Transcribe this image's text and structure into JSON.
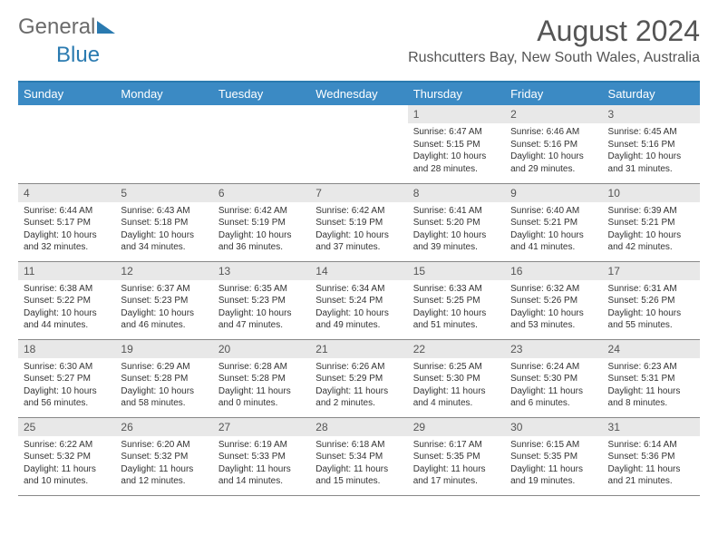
{
  "logo": {
    "text_gray": "General",
    "text_blue": "Blue"
  },
  "title": "August 2024",
  "location": "Rushcutters Bay, New South Wales, Australia",
  "colors": {
    "header_bg": "#3b8ac4",
    "header_border": "#2a7ab0",
    "daynum_bg": "#e8e8e8",
    "text_muted": "#555",
    "row_divider": "#888"
  },
  "weekdays": [
    "Sunday",
    "Monday",
    "Tuesday",
    "Wednesday",
    "Thursday",
    "Friday",
    "Saturday"
  ],
  "first_day_index": 4,
  "days": [
    {
      "n": 1,
      "sr": "6:47 AM",
      "ss": "5:15 PM",
      "dl": "10 hours and 28 minutes."
    },
    {
      "n": 2,
      "sr": "6:46 AM",
      "ss": "5:16 PM",
      "dl": "10 hours and 29 minutes."
    },
    {
      "n": 3,
      "sr": "6:45 AM",
      "ss": "5:16 PM",
      "dl": "10 hours and 31 minutes."
    },
    {
      "n": 4,
      "sr": "6:44 AM",
      "ss": "5:17 PM",
      "dl": "10 hours and 32 minutes."
    },
    {
      "n": 5,
      "sr": "6:43 AM",
      "ss": "5:18 PM",
      "dl": "10 hours and 34 minutes."
    },
    {
      "n": 6,
      "sr": "6:42 AM",
      "ss": "5:19 PM",
      "dl": "10 hours and 36 minutes."
    },
    {
      "n": 7,
      "sr": "6:42 AM",
      "ss": "5:19 PM",
      "dl": "10 hours and 37 minutes."
    },
    {
      "n": 8,
      "sr": "6:41 AM",
      "ss": "5:20 PM",
      "dl": "10 hours and 39 minutes."
    },
    {
      "n": 9,
      "sr": "6:40 AM",
      "ss": "5:21 PM",
      "dl": "10 hours and 41 minutes."
    },
    {
      "n": 10,
      "sr": "6:39 AM",
      "ss": "5:21 PM",
      "dl": "10 hours and 42 minutes."
    },
    {
      "n": 11,
      "sr": "6:38 AM",
      "ss": "5:22 PM",
      "dl": "10 hours and 44 minutes."
    },
    {
      "n": 12,
      "sr": "6:37 AM",
      "ss": "5:23 PM",
      "dl": "10 hours and 46 minutes."
    },
    {
      "n": 13,
      "sr": "6:35 AM",
      "ss": "5:23 PM",
      "dl": "10 hours and 47 minutes."
    },
    {
      "n": 14,
      "sr": "6:34 AM",
      "ss": "5:24 PM",
      "dl": "10 hours and 49 minutes."
    },
    {
      "n": 15,
      "sr": "6:33 AM",
      "ss": "5:25 PM",
      "dl": "10 hours and 51 minutes."
    },
    {
      "n": 16,
      "sr": "6:32 AM",
      "ss": "5:26 PM",
      "dl": "10 hours and 53 minutes."
    },
    {
      "n": 17,
      "sr": "6:31 AM",
      "ss": "5:26 PM",
      "dl": "10 hours and 55 minutes."
    },
    {
      "n": 18,
      "sr": "6:30 AM",
      "ss": "5:27 PM",
      "dl": "10 hours and 56 minutes."
    },
    {
      "n": 19,
      "sr": "6:29 AM",
      "ss": "5:28 PM",
      "dl": "10 hours and 58 minutes."
    },
    {
      "n": 20,
      "sr": "6:28 AM",
      "ss": "5:28 PM",
      "dl": "11 hours and 0 minutes."
    },
    {
      "n": 21,
      "sr": "6:26 AM",
      "ss": "5:29 PM",
      "dl": "11 hours and 2 minutes."
    },
    {
      "n": 22,
      "sr": "6:25 AM",
      "ss": "5:30 PM",
      "dl": "11 hours and 4 minutes."
    },
    {
      "n": 23,
      "sr": "6:24 AM",
      "ss": "5:30 PM",
      "dl": "11 hours and 6 minutes."
    },
    {
      "n": 24,
      "sr": "6:23 AM",
      "ss": "5:31 PM",
      "dl": "11 hours and 8 minutes."
    },
    {
      "n": 25,
      "sr": "6:22 AM",
      "ss": "5:32 PM",
      "dl": "11 hours and 10 minutes."
    },
    {
      "n": 26,
      "sr": "6:20 AM",
      "ss": "5:32 PM",
      "dl": "11 hours and 12 minutes."
    },
    {
      "n": 27,
      "sr": "6:19 AM",
      "ss": "5:33 PM",
      "dl": "11 hours and 14 minutes."
    },
    {
      "n": 28,
      "sr": "6:18 AM",
      "ss": "5:34 PM",
      "dl": "11 hours and 15 minutes."
    },
    {
      "n": 29,
      "sr": "6:17 AM",
      "ss": "5:35 PM",
      "dl": "11 hours and 17 minutes."
    },
    {
      "n": 30,
      "sr": "6:15 AM",
      "ss": "5:35 PM",
      "dl": "11 hours and 19 minutes."
    },
    {
      "n": 31,
      "sr": "6:14 AM",
      "ss": "5:36 PM",
      "dl": "11 hours and 21 minutes."
    }
  ],
  "labels": {
    "sunrise": "Sunrise: ",
    "sunset": "Sunset: ",
    "daylight": "Daylight: "
  }
}
